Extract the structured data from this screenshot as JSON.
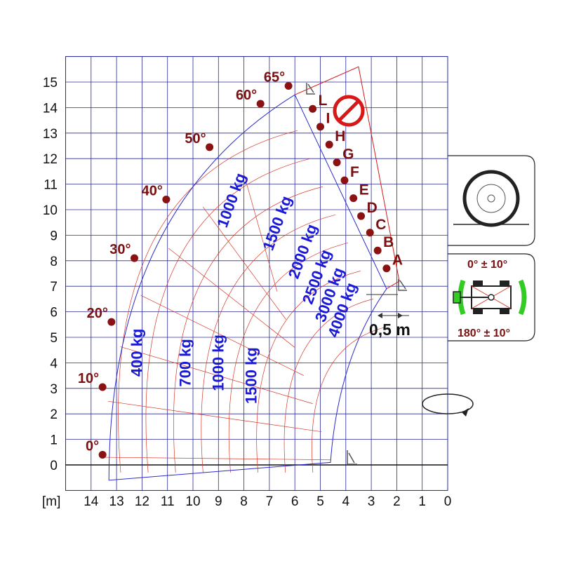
{
  "axes": {
    "y_ticks": [
      "0",
      "1",
      "2",
      "3",
      "4",
      "5",
      "6",
      "7",
      "8",
      "9",
      "10",
      "11",
      "12",
      "13",
      "14",
      "15"
    ],
    "x_ticks": [
      "14",
      "13",
      "12",
      "11",
      "10",
      "9",
      "8",
      "7",
      "6",
      "5",
      "4",
      "3",
      "2",
      "1",
      "0"
    ],
    "x_unit": "[m]"
  },
  "boom_angles": [
    {
      "label": "0°",
      "x": 13.55,
      "y": 0.4
    },
    {
      "label": "10°",
      "x": 13.55,
      "y": 3.05
    },
    {
      "label": "20°",
      "x": 13.2,
      "y": 5.6
    },
    {
      "label": "30°",
      "x": 12.3,
      "y": 8.1
    },
    {
      "label": "40°",
      "x": 11.05,
      "y": 10.4
    },
    {
      "label": "50°",
      "x": 9.35,
      "y": 12.45
    },
    {
      "label": "60°",
      "x": 7.35,
      "y": 14.15
    },
    {
      "label": "65°",
      "x": 6.25,
      "y": 14.85
    }
  ],
  "extension_marks": [
    {
      "label": "A",
      "x": 2.4,
      "y": 7.7
    },
    {
      "label": "B",
      "x": 2.75,
      "y": 8.4
    },
    {
      "label": "C",
      "x": 3.05,
      "y": 9.1
    },
    {
      "label": "D",
      "x": 3.4,
      "y": 9.75
    },
    {
      "label": "E",
      "x": 3.7,
      "y": 10.45
    },
    {
      "label": "F",
      "x": 4.05,
      "y": 11.15
    },
    {
      "label": "G",
      "x": 4.35,
      "y": 11.85
    },
    {
      "label": "H",
      "x": 4.65,
      "y": 12.55
    },
    {
      "label": "I",
      "x": 5.0,
      "y": 13.25
    },
    {
      "label": "L",
      "x": 5.3,
      "y": 13.95
    }
  ],
  "load_zones": [
    {
      "label": "400 kg",
      "x": 12.0,
      "y": 4.4,
      "rot": -90
    },
    {
      "label": "700 kg",
      "x": 10.1,
      "y": 4.0,
      "rot": -90
    },
    {
      "label": "1000 kg",
      "x": 8.8,
      "y": 4.0,
      "rot": -90
    },
    {
      "label": "1500 kg",
      "x": 7.5,
      "y": 3.5,
      "rot": -90
    },
    {
      "label": "1000 kg",
      "x": 8.3,
      "y": 10.3,
      "rot": -70
    },
    {
      "label": "1500 kg",
      "x": 6.5,
      "y": 9.4,
      "rot": -70
    },
    {
      "label": "2000 kg",
      "x": 5.5,
      "y": 8.3,
      "rot": -70
    },
    {
      "label": "2500 kg",
      "x": 4.95,
      "y": 7.3,
      "rot": -70
    },
    {
      "label": "3000 kg",
      "x": 4.45,
      "y": 6.6,
      "rot": -70
    },
    {
      "label": "4000 kg",
      "x": 3.95,
      "y": 6.0,
      "rot": -70
    }
  ],
  "annotations": {
    "fork_offset": "0,5 m",
    "slew_top": "0° ± 10°",
    "slew_bottom": "180° ± 10°"
  },
  "colors": {
    "grid": "#2a2a9a",
    "envelope": "#2a2acc",
    "red_lines": "#d83a2a",
    "angle_text": "#7a1010",
    "load_text": "#1a1ad6",
    "prohibited": "#d81818",
    "green": "#33cc22"
  },
  "icons": [
    "no-entry-icon",
    "tire-icon",
    "rotation-icon",
    "chassis-top-view-icon",
    "fork-icon"
  ]
}
